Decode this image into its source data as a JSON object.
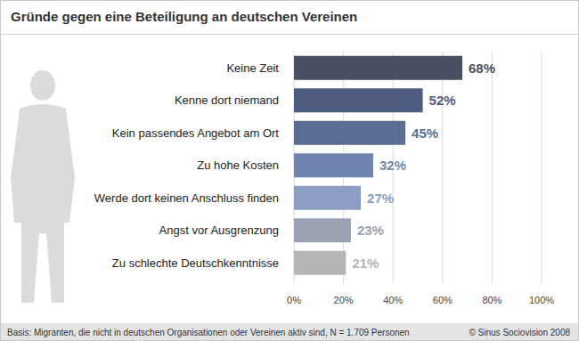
{
  "chart_data": {
    "type": "bar",
    "orientation": "horizontal",
    "title": "Gründe gegen eine Beteiligung an deutschen Vereinen",
    "categories": [
      "Keine Zeit",
      "Kenne dort niemand",
      "Kein passendes Angebot am Ort",
      "Zu hohe Kosten",
      "Werde dort keinen Anschluss finden",
      "Angst vor Ausgrenzung",
      "Zu schlechte Deutschkenntnisse"
    ],
    "values": [
      68,
      52,
      45,
      32,
      27,
      23,
      21
    ],
    "value_labels": [
      "68%",
      "52%",
      "45%",
      "32%",
      "27%",
      "23%",
      "21%"
    ],
    "colors": [
      "#4a4f63",
      "#4d5b80",
      "#5a6e94",
      "#7085ad",
      "#8c9ec3",
      "#9aa2b4",
      "#b5b5b5"
    ],
    "xlim": [
      0,
      100
    ],
    "xticks": [
      {
        "value": 0,
        "label": "0%"
      },
      {
        "value": 20,
        "label": "20%"
      },
      {
        "value": 40,
        "label": "40%"
      },
      {
        "value": 60,
        "label": "60%"
      },
      {
        "value": 80,
        "label": "80%"
      },
      {
        "value": 100,
        "label": "100%"
      }
    ],
    "grid": true,
    "data_labels": true,
    "annotations": [
      "Basis: Migranten, die nicht in deutschen Organisationen oder Vereinen aktiv sind, N = 1.709 Personen",
      "© Sinus Sociovision 2008"
    ]
  }
}
